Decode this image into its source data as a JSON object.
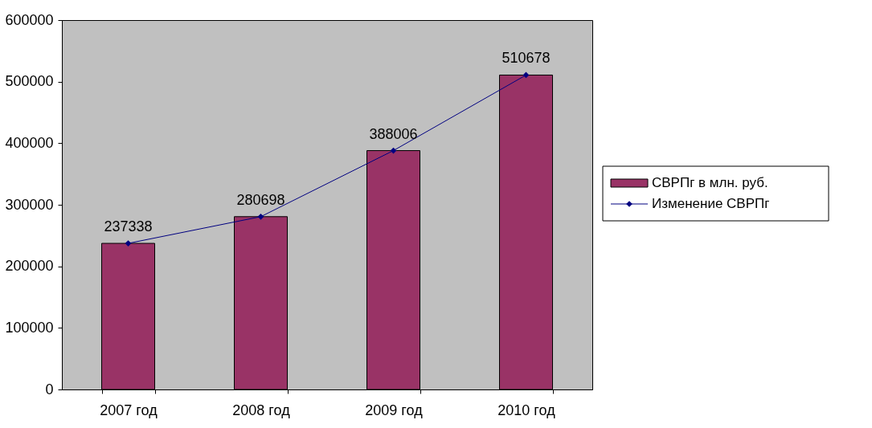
{
  "chart_data": {
    "type": "bar",
    "categories": [
      "2007 год",
      "2008 год",
      "2009 год",
      "2010 год"
    ],
    "series": [
      {
        "name": "СВРПг в млн. руб.",
        "color": "#993366",
        "values": [
          237338,
          280698,
          388006,
          510678
        ]
      },
      {
        "name": "Изменение СВРПг",
        "type": "line",
        "color": "#000080",
        "values": [
          237338,
          280698,
          388006,
          510678
        ],
        "value_labels": [
          "237338",
          "280698",
          "388006",
          "510678"
        ]
      }
    ],
    "ylim": [
      0,
      600000
    ],
    "yticks": [
      0,
      100000,
      200000,
      300000,
      400000,
      500000,
      600000
    ],
    "legend": "right",
    "marker": "diamond",
    "line_style": "solid"
  }
}
